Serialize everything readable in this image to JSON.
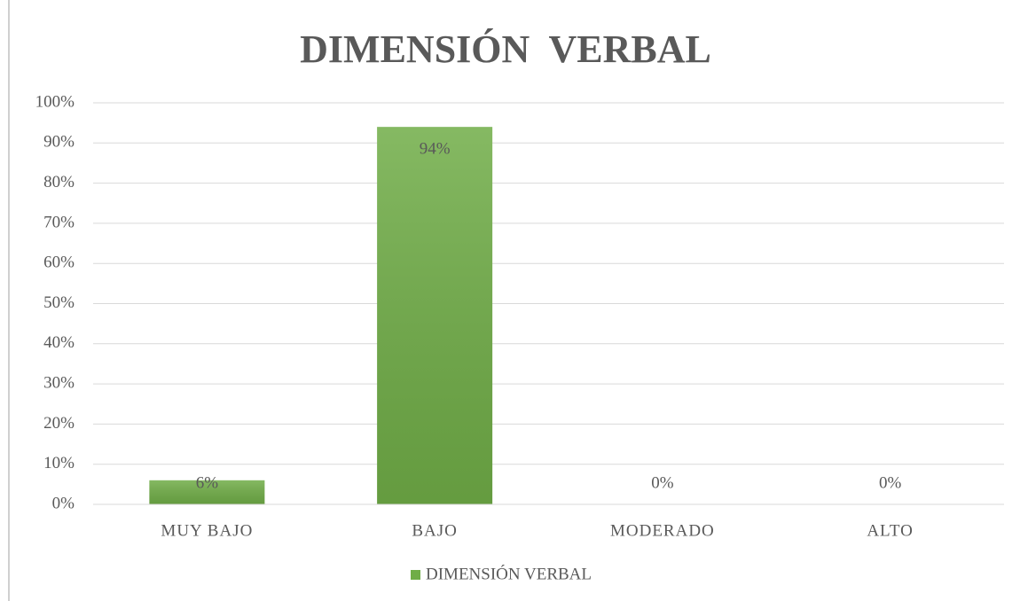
{
  "chart_data": {
    "type": "bar",
    "title": "DIMENSIÓN  VERBAL",
    "categories": [
      "MUY BAJO",
      "BAJO",
      "MODERADO",
      "ALTO"
    ],
    "series": [
      {
        "name": "DIMENSIÓN VERBAL",
        "color": "#70ad47",
        "values": [
          6,
          94,
          0,
          0
        ],
        "value_labels": [
          "6%",
          "94%",
          "0%",
          "0%"
        ]
      }
    ],
    "ylim": [
      0,
      100
    ],
    "yticks": [
      {
        "value": 0,
        "label": "0%"
      },
      {
        "value": 10,
        "label": "10%"
      },
      {
        "value": 20,
        "label": "20%"
      },
      {
        "value": 30,
        "label": "30%"
      },
      {
        "value": 40,
        "label": "40%"
      },
      {
        "value": 50,
        "label": "50%"
      },
      {
        "value": 60,
        "label": "60%"
      },
      {
        "value": 70,
        "label": "70%"
      },
      {
        "value": 80,
        "label": "80%"
      },
      {
        "value": 90,
        "label": "90%"
      },
      {
        "value": 100,
        "label": "100%"
      }
    ],
    "grid": true,
    "legend": "bottom"
  }
}
